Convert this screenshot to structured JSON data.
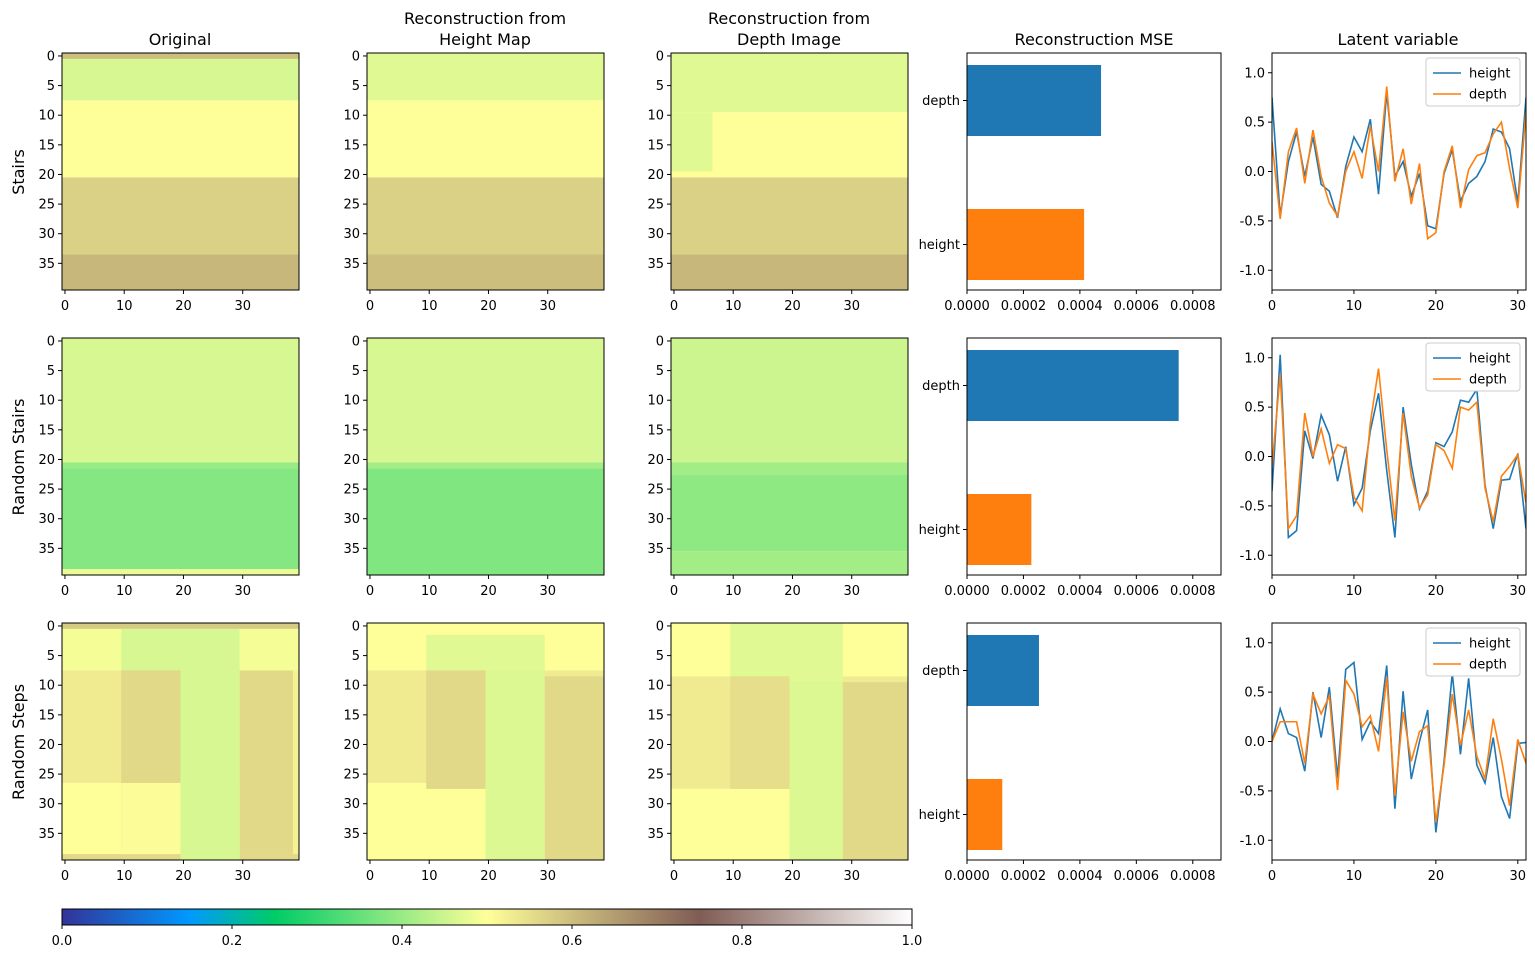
{
  "figure": {
    "row_labels": [
      "Stairs",
      "Random Stairs",
      "Random Steps"
    ],
    "column_titles": {
      "original": "Original",
      "recon_height": [
        "Reconstruction from",
        "Height Map"
      ],
      "recon_depth": [
        "Reconstruction from",
        "Depth Image"
      ],
      "mse": "Reconstruction MSE",
      "latent": "Latent variable"
    },
    "colormap": "terrain",
    "colorbar": {
      "min": 0.0,
      "max": 1.0,
      "ticks": [
        "0.0",
        "0.2",
        "0.4",
        "0.6",
        "0.8",
        "1.0"
      ]
    }
  },
  "chart_data": [
    {
      "type": "heatmap",
      "row": "Stairs",
      "grid_size": 40,
      "x_ticks": [
        0,
        10,
        20,
        30
      ],
      "y_ticks": [
        0,
        5,
        10,
        15,
        20,
        25,
        30,
        35
      ],
      "panels": {
        "original": {
          "bands": [
            {
              "rows": [
                0,
                1
              ],
              "value": 0.6
            },
            {
              "rows": [
                1,
                8
              ],
              "value": 0.46
            },
            {
              "rows": [
                8,
                21
              ],
              "value": 0.5
            },
            {
              "rows": [
                21,
                34
              ],
              "value": 0.57
            },
            {
              "rows": [
                34,
                40
              ],
              "value": 0.61
            }
          ],
          "patches": []
        },
        "height_map": {
          "bands": [
            {
              "rows": [
                0,
                8
              ],
              "value": 0.47
            },
            {
              "rows": [
                8,
                21
              ],
              "value": 0.5
            },
            {
              "rows": [
                21,
                34
              ],
              "value": 0.57
            },
            {
              "rows": [
                34,
                40
              ],
              "value": 0.6
            }
          ],
          "patches": []
        },
        "depth_image": {
          "bands": [
            {
              "rows": [
                0,
                10
              ],
              "value": 0.47
            },
            {
              "rows": [
                10,
                21
              ],
              "value": 0.5
            },
            {
              "rows": [
                21,
                34
              ],
              "value": 0.57
            },
            {
              "rows": [
                34,
                40
              ],
              "value": 0.61
            }
          ],
          "patches": [
            {
              "rows": [
                10,
                20
              ],
              "cols": [
                0,
                7
              ],
              "value": 0.47
            }
          ]
        }
      },
      "mse": {
        "xlim": [
          0,
          0.0009
        ],
        "x_ticks": [
          "0.0000",
          "0.0002",
          "0.0004",
          "0.0006",
          "0.0008"
        ],
        "categories": [
          "depth",
          "height"
        ],
        "values": [
          0.000475,
          0.000415
        ]
      },
      "latent": {
        "xlim": [
          0,
          31
        ],
        "ylim": [
          -1.2,
          1.2
        ],
        "x_ticks": [
          0,
          10,
          20,
          30
        ],
        "y_ticks": [
          "1.0",
          "0.5",
          "0.0",
          "-0.5",
          "-1.0"
        ],
        "legend": [
          "height",
          "depth"
        ],
        "height": [
          0.75,
          -0.45,
          0.1,
          0.4,
          -0.05,
          0.35,
          -0.13,
          -0.2,
          -0.47,
          0.05,
          0.35,
          0.2,
          0.53,
          -0.23,
          0.8,
          -0.05,
          0.1,
          -0.25,
          -0.02,
          -0.55,
          -0.58,
          -0.02,
          0.22,
          -0.3,
          -0.12,
          -0.05,
          0.1,
          0.43,
          0.4,
          0.23,
          -0.32,
          0.75
        ],
        "depth": [
          0.3,
          -0.48,
          0.2,
          0.44,
          -0.12,
          0.42,
          -0.05,
          -0.32,
          -0.45,
          0.0,
          0.2,
          -0.07,
          0.46,
          0.0,
          0.86,
          -0.1,
          0.23,
          -0.33,
          0.08,
          -0.68,
          -0.62,
          0.0,
          0.26,
          -0.37,
          0.02,
          0.16,
          0.19,
          0.38,
          0.5,
          0.03,
          -0.37,
          0.6
        ]
      }
    },
    {
      "type": "heatmap",
      "row": "Random Stairs",
      "grid_size": 40,
      "x_ticks": [
        0,
        10,
        20,
        30
      ],
      "y_ticks": [
        0,
        5,
        10,
        15,
        20,
        25,
        30,
        35
      ],
      "panels": {
        "original": {
          "bands": [
            {
              "rows": [
                0,
                21
              ],
              "value": 0.46
            },
            {
              "rows": [
                21,
                22
              ],
              "value": 0.4
            },
            {
              "rows": [
                22,
                39
              ],
              "value": 0.38
            },
            {
              "rows": [
                39,
                40
              ],
              "value": 0.48
            }
          ],
          "patches": []
        },
        "height_map": {
          "bands": [
            {
              "rows": [
                0,
                21
              ],
              "value": 0.46
            },
            {
              "rows": [
                21,
                22
              ],
              "value": 0.41
            },
            {
              "rows": [
                22,
                40
              ],
              "value": 0.375
            }
          ],
          "patches": []
        },
        "depth_image": {
          "bands": [
            {
              "rows": [
                0,
                21
              ],
              "value": 0.45
            },
            {
              "rows": [
                21,
                23
              ],
              "value": 0.41
            },
            {
              "rows": [
                23,
                36
              ],
              "value": 0.39
            },
            {
              "rows": [
                36,
                40
              ],
              "value": 0.41
            }
          ],
          "patches": []
        }
      },
      "mse": {
        "xlim": [
          0,
          0.0009
        ],
        "x_ticks": [
          "0.0000",
          "0.0002",
          "0.0004",
          "0.0006",
          "0.0008"
        ],
        "categories": [
          "depth",
          "height"
        ],
        "values": [
          0.00075,
          0.000228
        ]
      },
      "latent": {
        "xlim": [
          0,
          31
        ],
        "ylim": [
          -1.2,
          1.2
        ],
        "x_ticks": [
          0,
          10,
          20,
          30
        ],
        "y_ticks": [
          "1.0",
          "0.5",
          "0.0",
          "-0.5",
          "-1.0"
        ],
        "legend": [
          "height",
          "depth"
        ],
        "height": [
          -0.35,
          1.03,
          -0.82,
          -0.75,
          0.26,
          -0.02,
          0.42,
          0.22,
          -0.25,
          0.1,
          -0.49,
          -0.32,
          0.26,
          0.64,
          -0.14,
          -0.82,
          0.5,
          -0.08,
          -0.53,
          -0.35,
          0.14,
          0.1,
          0.25,
          0.57,
          0.55,
          0.68,
          -0.29,
          -0.73,
          -0.24,
          -0.23,
          0.03,
          -0.73
        ],
        "depth": [
          -0.1,
          0.83,
          -0.73,
          -0.6,
          0.44,
          0.0,
          0.28,
          -0.07,
          0.12,
          0.08,
          -0.41,
          -0.55,
          0.34,
          0.89,
          0.07,
          -0.65,
          0.44,
          -0.2,
          -0.52,
          -0.39,
          0.12,
          0.06,
          -0.12,
          0.5,
          0.47,
          0.55,
          -0.32,
          -0.66,
          -0.2,
          -0.1,
          0.02,
          -0.47
        ]
      }
    },
    {
      "type": "heatmap",
      "row": "Random Steps",
      "grid_size": 40,
      "x_ticks": [
        0,
        10,
        20,
        30
      ],
      "y_ticks": [
        0,
        5,
        10,
        15,
        20,
        25,
        30,
        35
      ],
      "panels": {
        "original": {
          "bands": [
            {
              "rows": [
                0,
                1
              ],
              "value": 0.58
            },
            {
              "rows": [
                1,
                8
              ],
              "value": 0.49
            },
            {
              "rows": [
                8,
                27
              ],
              "value": 0.53
            },
            {
              "rows": [
                27,
                39
              ],
              "value": 0.5
            },
            {
              "rows": [
                39,
                40
              ],
              "value": 0.56
            }
          ],
          "patches": [
            {
              "rows": [
                1,
                8
              ],
              "cols": [
                10,
                30
              ],
              "value": 0.46
            },
            {
              "rows": [
                8,
                40
              ],
              "cols": [
                20,
                30
              ],
              "value": 0.46
            },
            {
              "rows": [
                8,
                39
              ],
              "cols": [
                10,
                20
              ],
              "value": 0.56
            },
            {
              "rows": [
                27,
                39
              ],
              "cols": [
                10,
                20
              ],
              "value": 0.505
            },
            {
              "rows": [
                8,
                39
              ],
              "cols": [
                30,
                39
              ],
              "value": 0.56
            },
            {
              "rows": [
                8,
                39
              ],
              "cols": [
                39,
                40
              ],
              "value": 0.52
            },
            {
              "rows": [
                1,
                8
              ],
              "cols": [
                30,
                40
              ],
              "value": 0.49
            }
          ]
        },
        "height_map": {
          "bands": [
            {
              "rows": [
                0,
                8
              ],
              "value": 0.5
            },
            {
              "rows": [
                8,
                27
              ],
              "value": 0.53
            },
            {
              "rows": [
                27,
                40
              ],
              "value": 0.5
            }
          ],
          "patches": [
            {
              "rows": [
                2,
                8
              ],
              "cols": [
                10,
                30
              ],
              "value": 0.47
            },
            {
              "rows": [
                8,
                40
              ],
              "cols": [
                20,
                30
              ],
              "value": 0.465
            },
            {
              "rows": [
                8,
                28
              ],
              "cols": [
                10,
                20
              ],
              "value": 0.56
            },
            {
              "rows": [
                9,
                40
              ],
              "cols": [
                30,
                40
              ],
              "value": 0.56
            }
          ]
        },
        "depth_image": {
          "bands": [
            {
              "rows": [
                0,
                9
              ],
              "value": 0.5
            },
            {
              "rows": [
                9,
                28
              ],
              "value": 0.53
            },
            {
              "rows": [
                28,
                40
              ],
              "value": 0.5
            }
          ],
          "patches": [
            {
              "rows": [
                0,
                10
              ],
              "cols": [
                10,
                29
              ],
              "value": 0.47
            },
            {
              "rows": [
                10,
                40
              ],
              "cols": [
                20,
                29
              ],
              "value": 0.465
            },
            {
              "rows": [
                9,
                28
              ],
              "cols": [
                10,
                20
              ],
              "value": 0.55
            },
            {
              "rows": [
                10,
                40
              ],
              "cols": [
                29,
                40
              ],
              "value": 0.56
            }
          ]
        }
      },
      "mse": {
        "xlim": [
          0,
          0.0009
        ],
        "x_ticks": [
          "0.0000",
          "0.0002",
          "0.0004",
          "0.0006",
          "0.0008"
        ],
        "categories": [
          "depth",
          "height"
        ],
        "values": [
          0.000255,
          0.000125
        ]
      },
      "latent": {
        "xlim": [
          0,
          31
        ],
        "ylim": [
          -1.2,
          1.2
        ],
        "x_ticks": [
          0,
          10,
          20,
          30
        ],
        "y_ticks": [
          "1.0",
          "0.5",
          "0.0",
          "-0.5",
          "-1.0"
        ],
        "legend": [
          "height",
          "depth"
        ],
        "height": [
          0.0,
          0.33,
          0.08,
          0.04,
          -0.3,
          0.5,
          0.04,
          0.55,
          -0.37,
          0.73,
          0.8,
          0.02,
          0.2,
          0.08,
          0.77,
          -0.68,
          0.51,
          -0.38,
          0.0,
          0.32,
          -0.92,
          -0.2,
          0.69,
          -0.13,
          0.64,
          -0.24,
          -0.42,
          0.04,
          -0.56,
          -0.78,
          -0.02,
          -0.01
        ],
        "depth": [
          0.0,
          0.2,
          0.2,
          0.2,
          -0.22,
          0.48,
          0.28,
          0.46,
          -0.49,
          0.62,
          0.48,
          0.15,
          0.26,
          -0.1,
          0.65,
          -0.55,
          0.3,
          -0.2,
          0.1,
          0.16,
          -0.82,
          -0.24,
          0.48,
          -0.04,
          0.32,
          -0.15,
          -0.38,
          0.23,
          -0.18,
          -0.65,
          0.02,
          -0.22
        ]
      }
    }
  ]
}
